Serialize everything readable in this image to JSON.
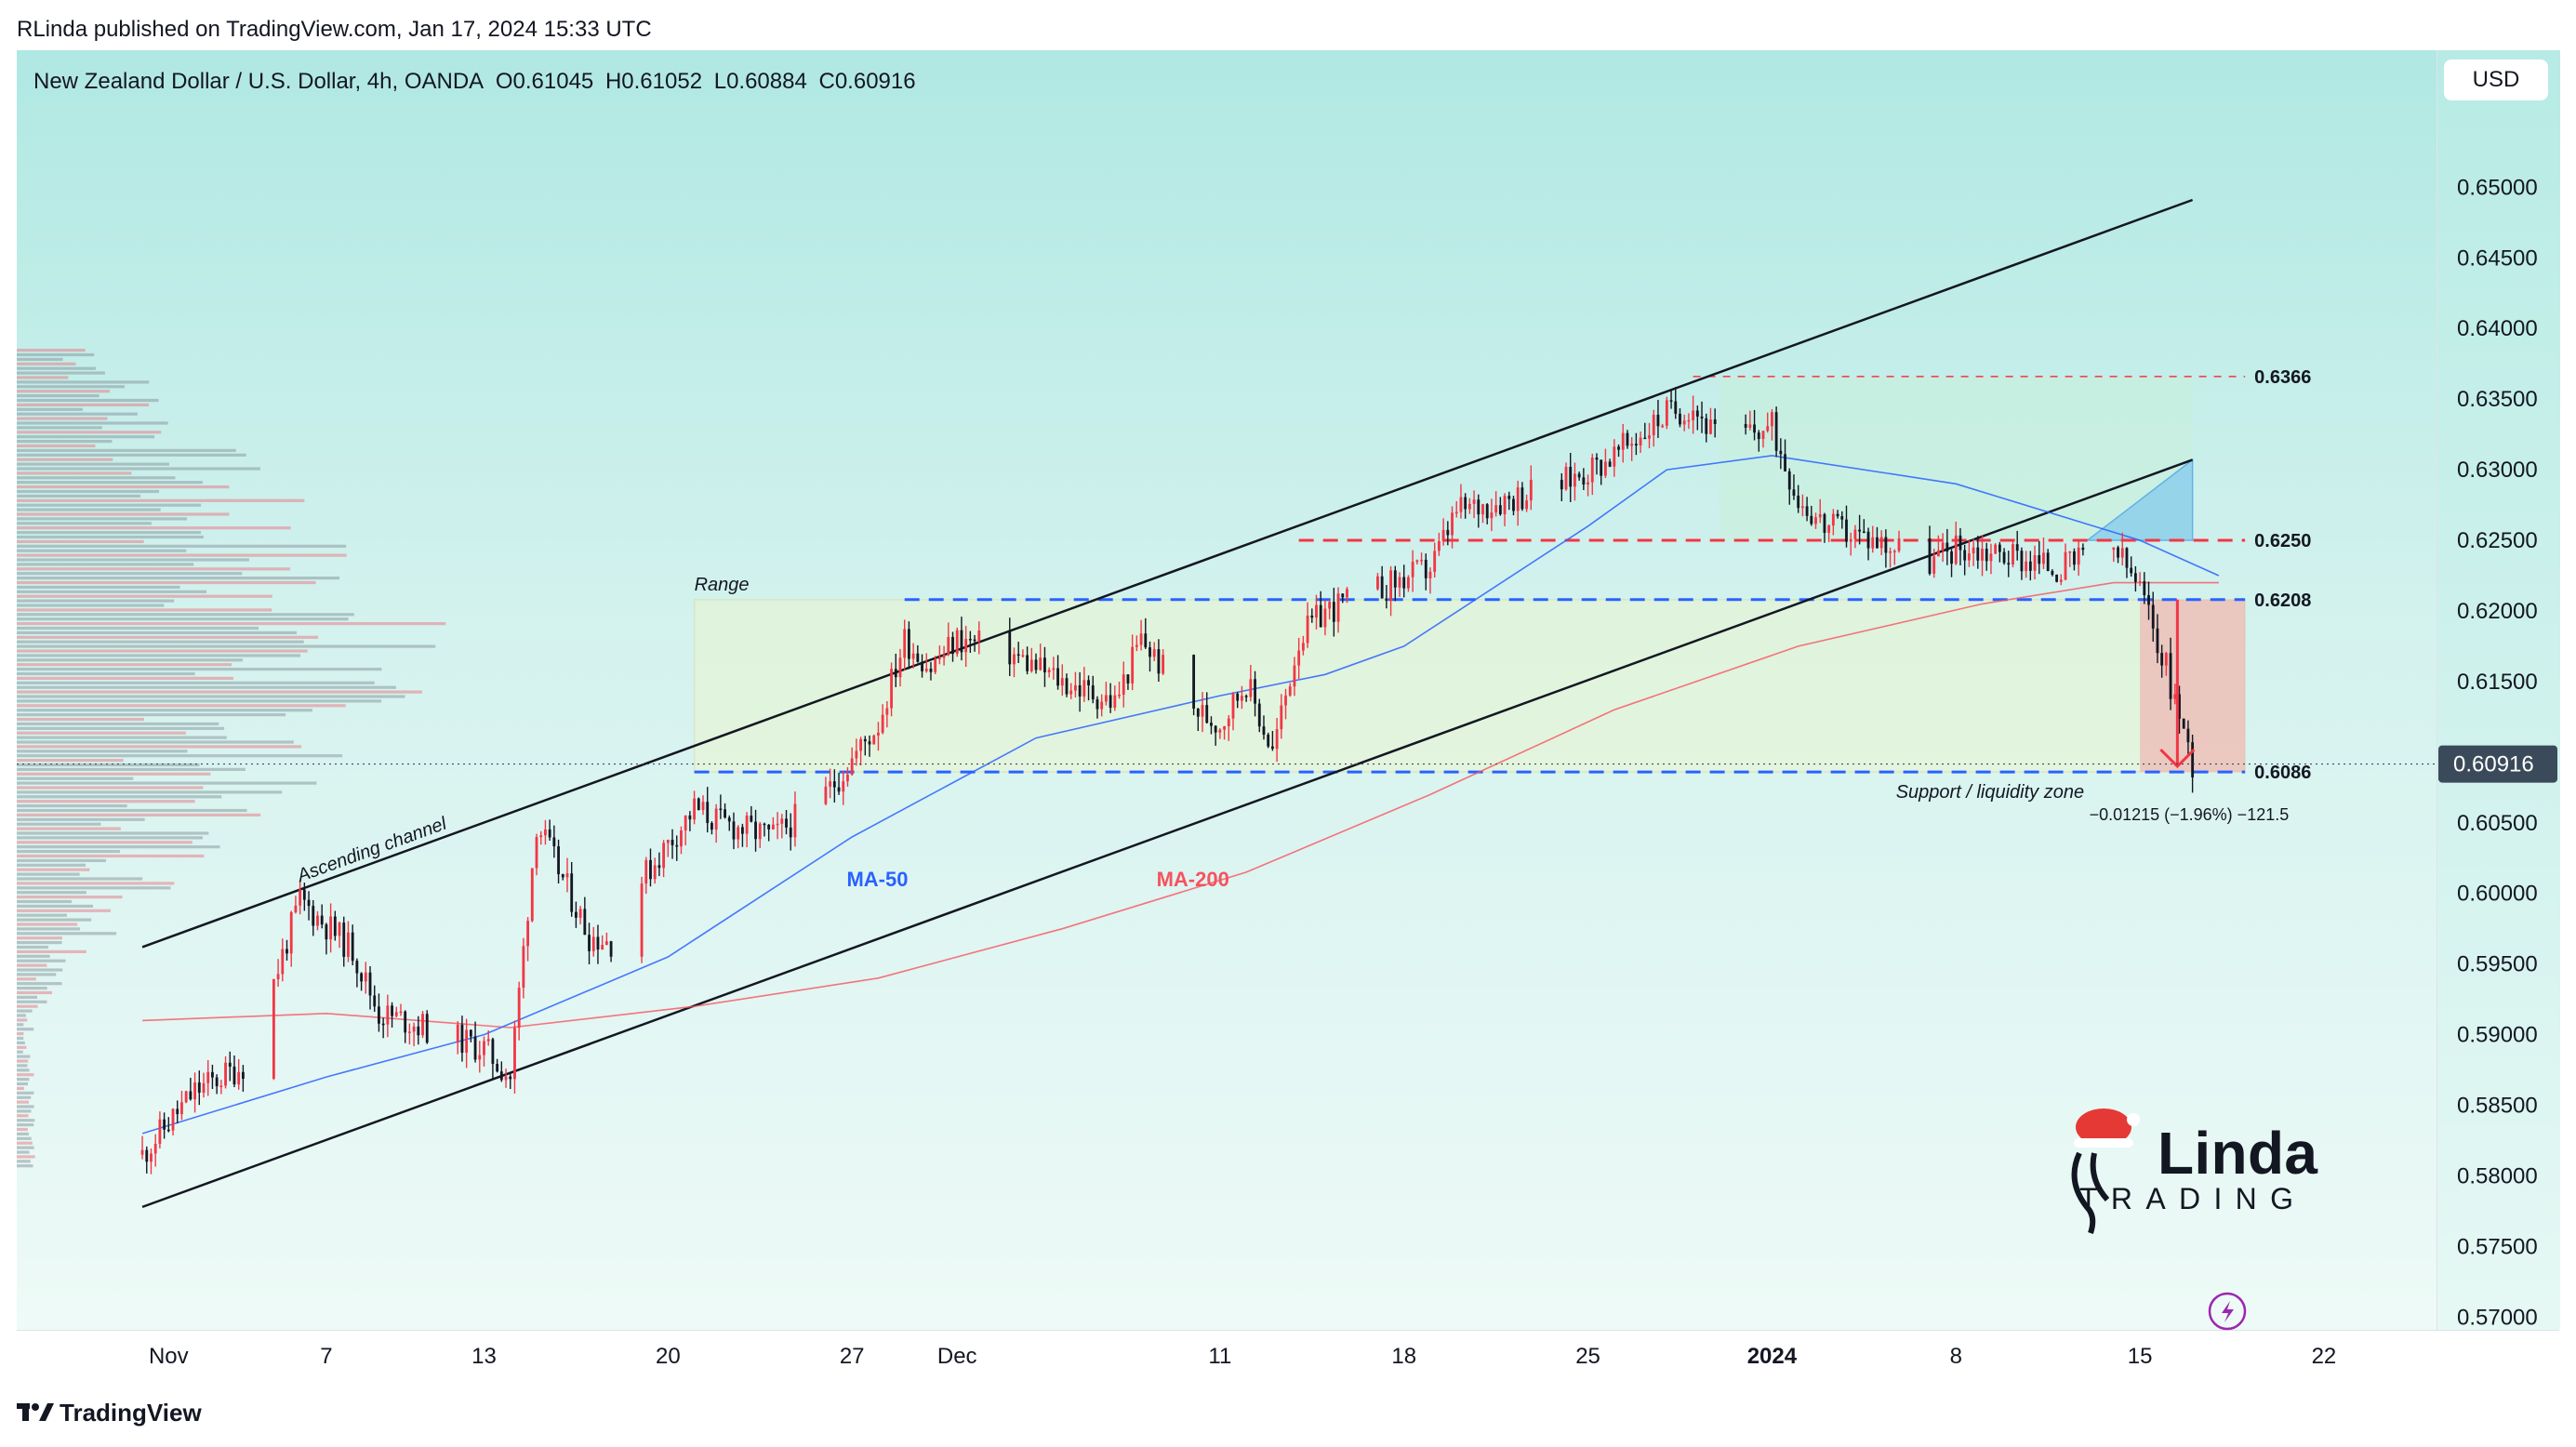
{
  "publisher_line": "RLinda published on TradingView.com, Jan 17, 2024 15:33 UTC",
  "legend": {
    "symbol": "New Zealand Dollar / U.S. Dollar, 4h, OANDA",
    "open": "O0.61045",
    "high": "H0.61052",
    "low": "L0.60884",
    "close": "C0.60916"
  },
  "currency_button": "USD",
  "footer_brand": "TradingView",
  "brand_colors": {
    "up": "#f23645",
    "down": "#131722",
    "ma50": "#2962ff",
    "ma200": "#f7525f"
  },
  "icons": {
    "footer": "tradingview-logo-icon",
    "lightning": "lightning-icon",
    "watermark": "rlinda-trading-logo"
  },
  "watermark": {
    "top": "Linda",
    "bottom": "TRADING"
  },
  "chart_data": {
    "type": "line",
    "title": "New Zealand Dollar / U.S. Dollar, 4h, OANDA",
    "y_ticks": [
      "0.65000",
      "0.64500",
      "0.64000",
      "0.63500",
      "0.63000",
      "0.62500",
      "0.62000",
      "0.61500",
      "0.60500",
      "0.60000",
      "0.59500",
      "0.59000",
      "0.58500",
      "0.58000",
      "0.57500",
      "0.57000"
    ],
    "x_ticks": [
      "Nov",
      "7",
      "13",
      "20",
      "27",
      "Dec",
      "11",
      "18",
      "25",
      "2024",
      "8",
      "15",
      "22"
    ],
    "ylim": [
      0.5691,
      0.6597
    ],
    "current_price": "0.60916",
    "levels": [
      {
        "label": "0.6366",
        "value": 0.6366,
        "style": "red-dashed"
      },
      {
        "label": "0.6250",
        "value": 0.625,
        "style": "red-dashed"
      },
      {
        "label": "0.6208",
        "value": 0.6208,
        "style": "blue-dashed"
      },
      {
        "label": "0.6086",
        "value": 0.6086,
        "style": "blue-dashed"
      }
    ],
    "annotations": {
      "channel": "Ascending channel",
      "range": "Range",
      "support": "Support / liquidity zone",
      "measure": "−0.01215 (−1.96%) −121.5",
      "ma50": "MA-50",
      "ma200": "MA-200"
    },
    "price_path": [
      [
        "2023-10-31",
        0.5815
      ],
      [
        "2023-11-02",
        0.586
      ],
      [
        "2023-11-04",
        0.588
      ],
      [
        "2023-11-06",
        0.5995
      ],
      [
        "2023-11-08",
        0.596
      ],
      [
        "2023-11-09",
        0.5915
      ],
      [
        "2023-11-10",
        0.591
      ],
      [
        "2023-11-13",
        0.589
      ],
      [
        "2023-11-14",
        0.587
      ],
      [
        "2023-11-15",
        0.605
      ],
      [
        "2023-11-17",
        0.597
      ],
      [
        "2023-11-18",
        0.5965
      ],
      [
        "2023-11-19",
        0.601
      ],
      [
        "2023-11-21",
        0.606
      ],
      [
        "2023-11-22",
        0.605
      ],
      [
        "2023-11-24",
        0.604
      ],
      [
        "2023-11-26",
        0.607
      ],
      [
        "2023-11-28",
        0.612
      ],
      [
        "2023-11-29",
        0.618
      ],
      [
        "2023-11-30",
        0.616
      ],
      [
        "2023-12-01",
        0.618
      ],
      [
        "2023-12-03",
        0.617
      ],
      [
        "2023-12-05",
        0.615
      ],
      [
        "2023-12-07",
        0.6135
      ],
      [
        "2023-12-08",
        0.618
      ],
      [
        "2023-12-10",
        0.613
      ],
      [
        "2023-12-11",
        0.612
      ],
      [
        "2023-12-12",
        0.615
      ],
      [
        "2023-12-13",
        0.61
      ],
      [
        "2023-12-14",
        0.618
      ],
      [
        "2023-12-15",
        0.62
      ],
      [
        "2023-12-17",
        0.6215
      ],
      [
        "2023-12-19",
        0.623
      ],
      [
        "2023-12-20",
        0.627
      ],
      [
        "2023-12-22",
        0.628
      ],
      [
        "2023-12-24",
        0.629
      ],
      [
        "2023-12-26",
        0.631
      ],
      [
        "2023-12-28",
        0.634
      ],
      [
        "2023-12-29",
        0.6345
      ],
      [
        "2023-12-30",
        0.632
      ],
      [
        "2024-01-01",
        0.633
      ],
      [
        "2024-01-02",
        0.628
      ],
      [
        "2024-01-03",
        0.626
      ],
      [
        "2024-01-05",
        0.625
      ],
      [
        "2024-01-07",
        0.6235
      ],
      [
        "2024-01-08",
        0.6245
      ],
      [
        "2024-01-10",
        0.624
      ],
      [
        "2024-01-12",
        0.623
      ],
      [
        "2024-01-14",
        0.6245
      ],
      [
        "2024-01-15",
        0.6215
      ],
      [
        "2024-01-16",
        0.616
      ],
      [
        "2024-01-17",
        0.60916
      ]
    ],
    "ma50": [
      [
        "2023-10-31",
        0.583
      ],
      [
        "2023-11-07",
        0.587
      ],
      [
        "2023-11-13",
        0.59
      ],
      [
        "2023-11-20",
        0.5955
      ],
      [
        "2023-11-27",
        0.604
      ],
      [
        "2023-12-04",
        0.611
      ],
      [
        "2023-12-11",
        0.614
      ],
      [
        "2023-12-15",
        0.6155
      ],
      [
        "2023-12-18",
        0.6175
      ],
      [
        "2023-12-25",
        0.626
      ],
      [
        "2023-12-28",
        0.63
      ],
      [
        "2024-01-01",
        0.631
      ],
      [
        "2024-01-08",
        0.629
      ],
      [
        "2024-01-15",
        0.625
      ],
      [
        "2024-01-18",
        0.6225
      ]
    ],
    "ma200": [
      [
        "2023-10-31",
        0.591
      ],
      [
        "2023-11-07",
        0.5915
      ],
      [
        "2023-11-14",
        0.5905
      ],
      [
        "2023-11-21",
        0.592
      ],
      [
        "2023-11-28",
        0.594
      ],
      [
        "2023-12-05",
        0.5975
      ],
      [
        "2023-12-12",
        0.6015
      ],
      [
        "2023-12-19",
        0.607
      ],
      [
        "2023-12-26",
        0.613
      ],
      [
        "2024-01-02",
        0.6175
      ],
      [
        "2024-01-09",
        0.6205
      ],
      [
        "2024-01-14",
        0.622
      ],
      [
        "2024-01-18",
        0.622
      ]
    ]
  }
}
